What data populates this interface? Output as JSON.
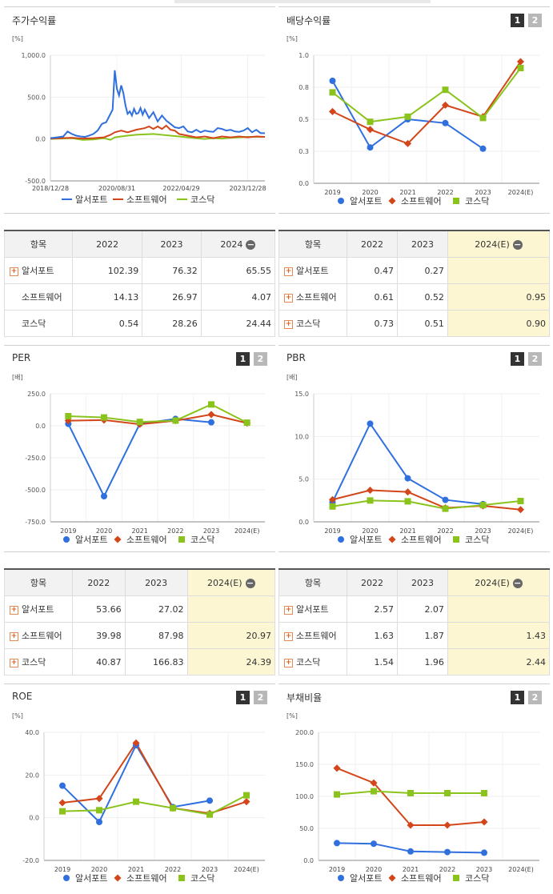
{
  "panels": {
    "stock": {
      "title": "주가수익률",
      "unit": "[%]"
    },
    "dividend": {
      "title": "배당수익률",
      "unit": "[%]"
    },
    "per": {
      "title": "PER",
      "unit": "[배]"
    },
    "pbr": {
      "title": "PBR",
      "unit": "[배]"
    },
    "roe": {
      "title": "ROE",
      "unit": "[%]"
    },
    "debt": {
      "title": "부채비율",
      "unit": "[%]"
    }
  },
  "page_buttons": {
    "one": "1",
    "two": "2"
  },
  "legend": {
    "s1": "알서포트",
    "s2": "소프트웨어",
    "s3": "코스닥"
  },
  "colors": {
    "s1": "#2f6fde",
    "s2": "#d2461a",
    "s3": "#8ac31c"
  },
  "tables": {
    "stock": {
      "headers": [
        "항목",
        "2022",
        "2023",
        "2024"
      ],
      "rows": [
        {
          "label": "알서포트",
          "v": [
            "102.39",
            "76.32",
            "65.55"
          ]
        },
        {
          "label": "소프트웨어",
          "v": [
            "14.13",
            "26.97",
            "4.07"
          ]
        },
        {
          "label": "코스닥",
          "v": [
            "0.54",
            "28.26",
            "24.44"
          ]
        }
      ]
    },
    "dividend": {
      "headers": [
        "항목",
        "2022",
        "2023",
        "2024(E)"
      ],
      "rows": [
        {
          "label": "알서포트",
          "v": [
            "0.47",
            "0.27",
            ""
          ]
        },
        {
          "label": "소프트웨어",
          "v": [
            "0.61",
            "0.52",
            "0.95"
          ]
        },
        {
          "label": "코스닥",
          "v": [
            "0.73",
            "0.51",
            "0.90"
          ]
        }
      ]
    },
    "per": {
      "headers": [
        "항목",
        "2022",
        "2023",
        "2024(E)"
      ],
      "rows": [
        {
          "label": "알서포트",
          "v": [
            "53.66",
            "27.02",
            ""
          ]
        },
        {
          "label": "소프트웨어",
          "v": [
            "39.98",
            "87.98",
            "20.97"
          ]
        },
        {
          "label": "코스닥",
          "v": [
            "40.87",
            "166.83",
            "24.39"
          ]
        }
      ]
    },
    "pbr": {
      "headers": [
        "항목",
        "2022",
        "2023",
        "2024(E)"
      ],
      "rows": [
        {
          "label": "알서포트",
          "v": [
            "2.57",
            "2.07",
            ""
          ]
        },
        {
          "label": "소프트웨어",
          "v": [
            "1.63",
            "1.87",
            "1.43"
          ]
        },
        {
          "label": "코스닥",
          "v": [
            "1.54",
            "1.96",
            "2.44"
          ]
        }
      ]
    }
  },
  "chart_data": [
    {
      "id": "stock",
      "type": "line",
      "ylabel": "[%]",
      "ylim": [
        -500,
        1000
      ],
      "yticks": [
        "1,000.0",
        "500.0",
        "0.0",
        "-500.0"
      ],
      "ytick_values": [
        1000,
        500,
        0,
        -500
      ],
      "xtick_labels": [
        "2018/12/28",
        "2020/08/31",
        "2022/04/29",
        "2023/12/28"
      ],
      "x_range": [
        0,
        100
      ],
      "xtick_positions": [
        0,
        31,
        61,
        92
      ],
      "series": [
        {
          "name": "알서포트",
          "x": [
            0,
            3,
            6,
            8,
            10,
            12,
            14,
            16,
            18,
            20,
            22,
            24,
            26,
            28,
            29,
            30,
            31,
            32,
            33,
            34,
            35,
            36,
            37,
            38,
            39,
            40,
            41,
            42,
            43,
            44,
            45,
            46,
            48,
            50,
            52,
            54,
            56,
            58,
            60,
            62,
            64,
            66,
            68,
            70,
            72,
            74,
            76,
            78,
            80,
            82,
            84,
            86,
            88,
            90,
            92,
            94,
            96,
            98,
            100
          ],
          "y": [
            10,
            20,
            30,
            90,
            60,
            40,
            30,
            25,
            40,
            60,
            100,
            180,
            200,
            300,
            350,
            820,
            600,
            520,
            640,
            550,
            400,
            300,
            330,
            280,
            360,
            300,
            310,
            370,
            290,
            350,
            300,
            250,
            320,
            210,
            280,
            220,
            180,
            140,
            130,
            150,
            90,
            80,
            110,
            80,
            100,
            90,
            85,
            130,
            120,
            100,
            110,
            90,
            85,
            100,
            130,
            80,
            110,
            70,
            70
          ]
        },
        {
          "name": "소프트웨어",
          "x": [
            0,
            5,
            10,
            15,
            20,
            25,
            28,
            30,
            33,
            36,
            40,
            44,
            46,
            48,
            50,
            52,
            54,
            56,
            58,
            60,
            64,
            68,
            72,
            76,
            80,
            84,
            88,
            92,
            96,
            100
          ],
          "y": [
            5,
            10,
            15,
            5,
            10,
            20,
            50,
            80,
            100,
            80,
            110,
            130,
            150,
            120,
            150,
            120,
            160,
            110,
            100,
            60,
            40,
            20,
            30,
            10,
            30,
            20,
            30,
            20,
            30,
            25
          ]
        },
        {
          "name": "코스닥",
          "x": [
            0,
            5,
            10,
            15,
            20,
            25,
            28,
            30,
            33,
            36,
            40,
            44,
            48,
            52,
            56,
            60,
            64,
            68,
            72,
            76,
            80,
            84,
            88,
            92,
            96,
            100
          ],
          "y": [
            0,
            5,
            10,
            -10,
            -5,
            10,
            -10,
            20,
            30,
            40,
            50,
            55,
            60,
            50,
            40,
            30,
            20,
            10,
            0,
            10,
            5,
            15,
            20,
            25,
            25,
            25
          ]
        }
      ]
    },
    {
      "id": "dividend",
      "type": "line",
      "ylabel": "[%]",
      "categories": [
        "2019",
        "2020",
        "2021",
        "2022",
        "2023",
        "2024(E)"
      ],
      "ylim": [
        0.0,
        1.0
      ],
      "yticks": [
        "1.0",
        "0.8",
        "0.5",
        "0.3",
        "0.0"
      ],
      "ytick_values": [
        1.0,
        0.75,
        0.5,
        0.25,
        0.0
      ],
      "series": [
        {
          "name": "알서포트",
          "values": [
            0.8,
            0.28,
            0.5,
            0.47,
            0.27,
            null
          ]
        },
        {
          "name": "소프트웨어",
          "values": [
            0.56,
            0.42,
            0.31,
            0.61,
            0.52,
            0.95
          ]
        },
        {
          "name": "코스닥",
          "values": [
            0.71,
            0.48,
            0.52,
            0.73,
            0.51,
            0.9
          ]
        }
      ]
    },
    {
      "id": "per",
      "type": "line",
      "ylabel": "[배]",
      "categories": [
        "2019",
        "2020",
        "2021",
        "2022",
        "2023",
        "2024(E)"
      ],
      "ylim": [
        -750,
        250
      ],
      "yticks": [
        "250.0",
        "0.0",
        "-250.0",
        "-500.0",
        "-750.0"
      ],
      "ytick_values": [
        250,
        0,
        -250,
        -500,
        -750
      ],
      "series": [
        {
          "name": "알서포트",
          "values": [
            15,
            -550,
            15,
            53.66,
            27.02,
            null
          ]
        },
        {
          "name": "소프트웨어",
          "values": [
            40,
            45,
            12,
            39.98,
            87.98,
            20.97
          ]
        },
        {
          "name": "코스닥",
          "values": [
            75,
            65,
            30,
            40.87,
            166.83,
            24.39
          ]
        }
      ]
    },
    {
      "id": "pbr",
      "type": "line",
      "ylabel": "[배]",
      "categories": [
        "2019",
        "2020",
        "2021",
        "2022",
        "2023",
        "2024(E)"
      ],
      "ylim": [
        0,
        15
      ],
      "yticks": [
        "15.0",
        "10.0",
        "5.0",
        "0.0"
      ],
      "ytick_values": [
        15,
        10,
        5,
        0
      ],
      "series": [
        {
          "name": "알서포트",
          "values": [
            2.3,
            11.5,
            5.1,
            2.57,
            2.07,
            null
          ]
        },
        {
          "name": "소프트웨어",
          "values": [
            2.6,
            3.7,
            3.5,
            1.63,
            1.87,
            1.43
          ]
        },
        {
          "name": "코스닥",
          "values": [
            1.8,
            2.5,
            2.4,
            1.54,
            1.96,
            2.44
          ]
        }
      ]
    },
    {
      "id": "roe",
      "type": "line",
      "ylabel": "[%]",
      "categories": [
        "2019",
        "2020",
        "2021",
        "2022",
        "2023",
        "2024(E)"
      ],
      "ylim": [
        -20,
        40
      ],
      "yticks": [
        "40.0",
        "20.0",
        "0.0",
        "-20.0"
      ],
      "ytick_values": [
        40,
        20,
        0,
        -20
      ],
      "series": [
        {
          "name": "알서포트",
          "values": [
            15,
            -2,
            34,
            5,
            8,
            null
          ]
        },
        {
          "name": "소프트웨어",
          "values": [
            7,
            9,
            35,
            4.5,
            2,
            7.5
          ]
        },
        {
          "name": "코스닥",
          "values": [
            3,
            3.5,
            7.5,
            4.5,
            1.5,
            10.5
          ]
        }
      ]
    },
    {
      "id": "debt",
      "type": "line",
      "ylabel": "[%]",
      "categories": [
        "2019",
        "2020",
        "2021",
        "2022",
        "2023",
        "2024(E)"
      ],
      "ylim": [
        0,
        200
      ],
      "yticks": [
        "200.0",
        "150.0",
        "100.0",
        "50.0",
        "0.0"
      ],
      "ytick_values": [
        200,
        150,
        100,
        50,
        0
      ],
      "series": [
        {
          "name": "알서포트",
          "values": [
            27,
            26,
            14,
            13,
            12,
            null
          ]
        },
        {
          "name": "소프트웨어",
          "values": [
            144,
            121,
            55,
            55,
            60,
            null
          ]
        },
        {
          "name": "코스닥",
          "values": [
            103,
            108,
            105,
            105,
            105,
            null
          ]
        }
      ]
    }
  ]
}
